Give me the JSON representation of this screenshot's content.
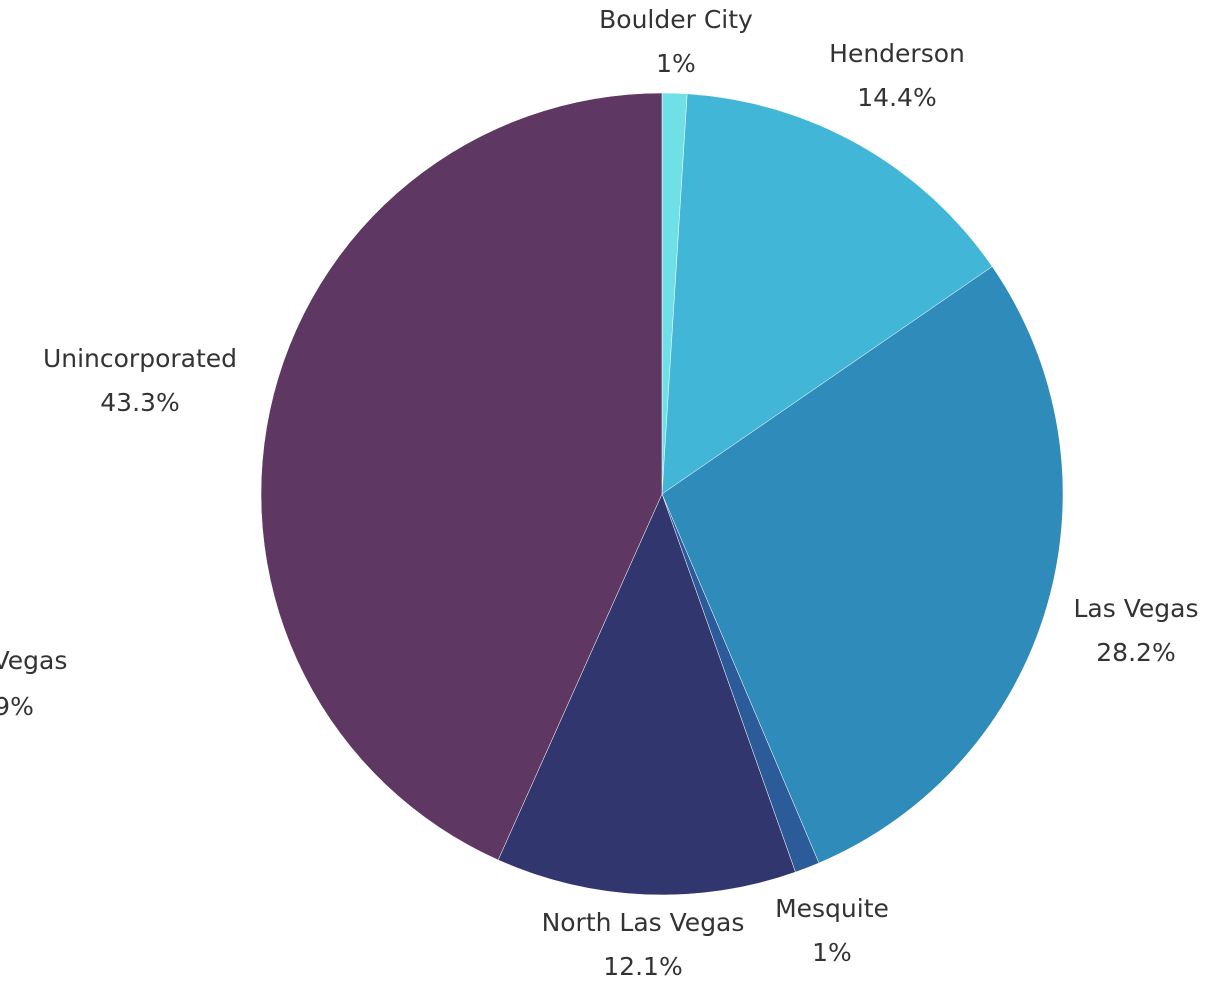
{
  "chart_data": {
    "type": "pie",
    "categories": [
      "Boulder City",
      "Henderson",
      "Las Vegas",
      "Mesquite",
      "North Las Vegas",
      "Unincorporated"
    ],
    "values": [
      1,
      14.4,
      28.2,
      1,
      12.1,
      43.3
    ],
    "value_labels": [
      "1%",
      "14.4%",
      "28.2%",
      "1%",
      "12.1%",
      "43.3%"
    ],
    "colors": [
      "#6ee0e6",
      "#42b6d6",
      "#2e8bba",
      "#2c5b99",
      "#32366e",
      "#5e3862"
    ],
    "annotations": [
      "Vegas",
      "9%"
    ]
  }
}
